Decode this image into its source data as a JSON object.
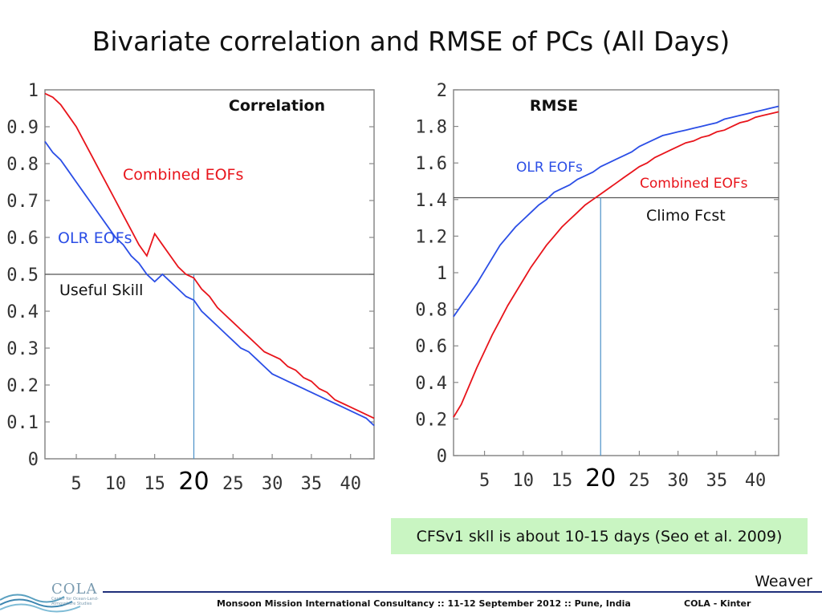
{
  "slide": {
    "title": "Bivariate correlation and RMSE of PCs (All Days)",
    "note": "CFSv1 skll is about 10-15 days (Seo et al. 2009)",
    "author": "Weaver",
    "footer": "Monsoon Mission International Consultancy :: 11-12 September 2012 :: Pune, India",
    "footer_right": "COLA - Kinter",
    "logo_text": "COLA",
    "logo_subtext": "Center for Ocean-Land-Atmosphere Studies"
  },
  "chart_data": [
    {
      "type": "line",
      "title": "Correlation",
      "x_ticks": [
        5,
        10,
        15,
        25,
        30,
        35,
        40
      ],
      "highlight_x_label": "20",
      "y_ticks": [
        "0",
        "0.1",
        "0.2",
        "0.3",
        "0.4",
        "0.5",
        "0.6",
        "0.7",
        "0.8",
        "0.9",
        "1"
      ],
      "xlim": [
        1,
        43
      ],
      "ylim": [
        0,
        1
      ],
      "series": [
        {
          "name": "Combined EOFs",
          "color": "#e8141b",
          "x": [
            1,
            2,
            3,
            4,
            5,
            6,
            7,
            8,
            9,
            10,
            11,
            12,
            13,
            14,
            15,
            16,
            17,
            18,
            19,
            20,
            21,
            22,
            23,
            24,
            25,
            26,
            27,
            28,
            29,
            30,
            31,
            32,
            33,
            34,
            35,
            36,
            37,
            38,
            39,
            40,
            41,
            42,
            43
          ],
          "values": [
            0.99,
            0.98,
            0.96,
            0.93,
            0.9,
            0.86,
            0.82,
            0.78,
            0.74,
            0.7,
            0.66,
            0.62,
            0.58,
            0.55,
            0.61,
            0.58,
            0.55,
            0.52,
            0.5,
            0.49,
            0.46,
            0.44,
            0.41,
            0.39,
            0.37,
            0.35,
            0.33,
            0.31,
            0.29,
            0.28,
            0.27,
            0.25,
            0.24,
            0.22,
            0.21,
            0.19,
            0.18,
            0.16,
            0.15,
            0.14,
            0.13,
            0.12,
            0.11
          ]
        },
        {
          "name": "OLR EOFs",
          "color": "#2b4ee6",
          "x": [
            1,
            2,
            3,
            4,
            5,
            6,
            7,
            8,
            9,
            10,
            11,
            12,
            13,
            14,
            15,
            16,
            17,
            18,
            19,
            20,
            21,
            22,
            23,
            24,
            25,
            26,
            27,
            28,
            29,
            30,
            31,
            32,
            33,
            34,
            35,
            36,
            37,
            38,
            39,
            40,
            41,
            42,
            43
          ],
          "values": [
            0.86,
            0.83,
            0.81,
            0.78,
            0.75,
            0.72,
            0.69,
            0.66,
            0.63,
            0.6,
            0.58,
            0.55,
            0.53,
            0.5,
            0.48,
            0.5,
            0.48,
            0.46,
            0.44,
            0.43,
            0.4,
            0.38,
            0.36,
            0.34,
            0.32,
            0.3,
            0.29,
            0.27,
            0.25,
            0.23,
            0.22,
            0.21,
            0.2,
            0.19,
            0.18,
            0.17,
            0.16,
            0.15,
            0.14,
            0.13,
            0.12,
            0.11,
            0.09
          ]
        }
      ],
      "reference_line": {
        "y": 0.5,
        "label": "Useful Skill"
      },
      "marker_x": 20,
      "grid": false
    },
    {
      "type": "line",
      "title": "RMSE",
      "x_ticks": [
        5,
        10,
        15,
        25,
        30,
        35,
        40
      ],
      "highlight_x_label": "20",
      "y_ticks": [
        "0",
        "0.2",
        "0.4",
        "0.6",
        "0.8",
        "1",
        "1.2",
        "1.4",
        "1.6",
        "1.8",
        "2"
      ],
      "xlim": [
        1,
        43
      ],
      "ylim": [
        0,
        2
      ],
      "series": [
        {
          "name": "Combined EOFs",
          "color": "#e8141b",
          "x": [
            1,
            2,
            3,
            4,
            5,
            6,
            7,
            8,
            9,
            10,
            11,
            12,
            13,
            14,
            15,
            16,
            17,
            18,
            19,
            20,
            21,
            22,
            23,
            24,
            25,
            26,
            27,
            28,
            29,
            30,
            31,
            32,
            33,
            34,
            35,
            36,
            37,
            38,
            39,
            40,
            41,
            42,
            43
          ],
          "values": [
            0.21,
            0.28,
            0.38,
            0.48,
            0.57,
            0.66,
            0.74,
            0.82,
            0.89,
            0.96,
            1.03,
            1.09,
            1.15,
            1.2,
            1.25,
            1.29,
            1.33,
            1.37,
            1.4,
            1.43,
            1.46,
            1.49,
            1.52,
            1.55,
            1.58,
            1.6,
            1.63,
            1.65,
            1.67,
            1.69,
            1.71,
            1.72,
            1.74,
            1.75,
            1.77,
            1.78,
            1.8,
            1.82,
            1.83,
            1.85,
            1.86,
            1.87,
            1.88
          ]
        },
        {
          "name": "OLR EOFs",
          "color": "#2b4ee6",
          "x": [
            1,
            2,
            3,
            4,
            5,
            6,
            7,
            8,
            9,
            10,
            11,
            12,
            13,
            14,
            15,
            16,
            17,
            18,
            19,
            20,
            21,
            22,
            23,
            24,
            25,
            26,
            27,
            28,
            29,
            30,
            31,
            32,
            33,
            34,
            35,
            36,
            37,
            38,
            39,
            40,
            41,
            42,
            43
          ],
          "values": [
            0.76,
            0.82,
            0.88,
            0.94,
            1.01,
            1.08,
            1.15,
            1.2,
            1.25,
            1.29,
            1.33,
            1.37,
            1.4,
            1.44,
            1.46,
            1.48,
            1.51,
            1.53,
            1.55,
            1.58,
            1.6,
            1.62,
            1.64,
            1.66,
            1.69,
            1.71,
            1.73,
            1.75,
            1.76,
            1.77,
            1.78,
            1.79,
            1.8,
            1.81,
            1.82,
            1.84,
            1.85,
            1.86,
            1.87,
            1.88,
            1.89,
            1.9,
            1.91
          ]
        }
      ],
      "reference_line": {
        "y": 1.41,
        "label": "Climo Fcst"
      },
      "marker_x": 20,
      "grid": false
    }
  ]
}
